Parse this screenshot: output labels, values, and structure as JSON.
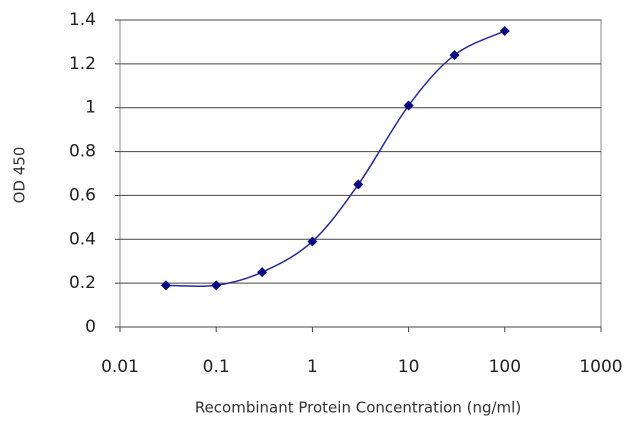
{
  "chart_data": {
    "type": "line",
    "x_label": "Recombinant Protein Concentration  (ng/ml)",
    "y_label": "OD 450",
    "x": [
      0.03,
      0.1,
      0.3,
      1,
      3,
      10,
      30,
      100
    ],
    "values": [
      0.19,
      0.19,
      0.25,
      0.39,
      0.65,
      1.01,
      1.24,
      1.35
    ],
    "color": "#2a2aa0",
    "marker_color": "#0a0a80",
    "xscale": "log",
    "xlim": [
      0.01,
      1000
    ],
    "xticks": [
      0.01,
      0.1,
      1,
      10,
      100,
      1000
    ],
    "ylim": [
      0,
      1.4
    ],
    "yticks": [
      0,
      0.2,
      0.4,
      0.6,
      0.8,
      1,
      1.2,
      1.4
    ],
    "grid": true
  }
}
